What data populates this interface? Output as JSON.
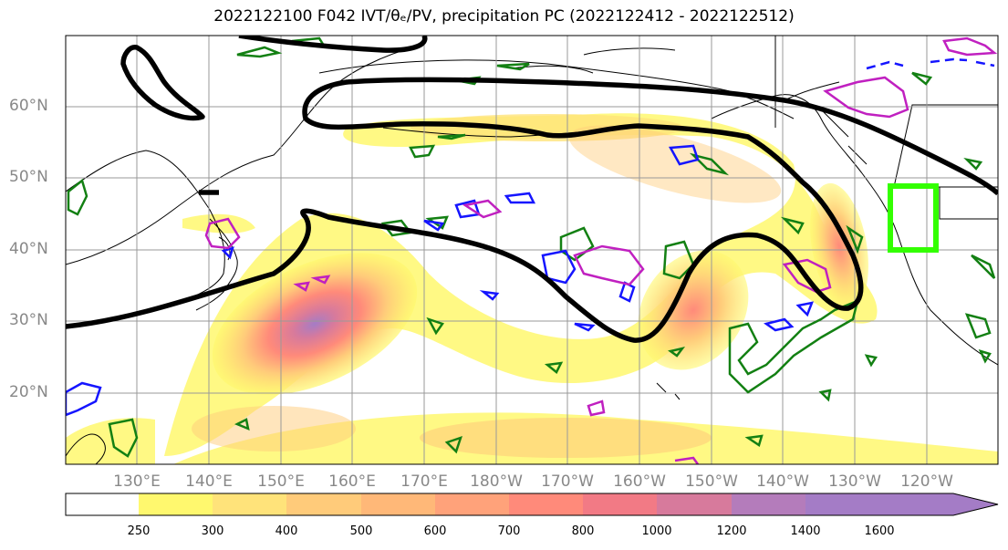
{
  "title": "2022122100 F042 IVT/θₑ/PV, precipitation PC (2022122412 - 2022122512)",
  "lat_labels": [
    "60°N",
    "50°N",
    "40°N",
    "30°N",
    "20°N"
  ],
  "lon_labels": [
    "130°E",
    "140°E",
    "150°E",
    "160°E",
    "170°E",
    "180°W",
    "170°W",
    "160°W",
    "150°W",
    "140°W",
    "130°W",
    "120°W"
  ],
  "colorbar": {
    "ticks": [
      "250",
      "300",
      "400",
      "500",
      "600",
      "700",
      "800",
      "1000",
      "1200",
      "1400",
      "1600"
    ],
    "colors": [
      "#ffffff",
      "#fff86e",
      "#ffe37a",
      "#ffcb7a",
      "#ffb878",
      "#ffa27a",
      "#ff8a7a",
      "#f27a85",
      "#d77a9c",
      "#b47cbb",
      "#a47cc6"
    ]
  },
  "colors": {
    "theta_contour": "#000000",
    "pv_green": "#138013",
    "pv_blue": "#1515ff",
    "pv_magenta": "#c020c0",
    "box": "#33ff00"
  }
}
